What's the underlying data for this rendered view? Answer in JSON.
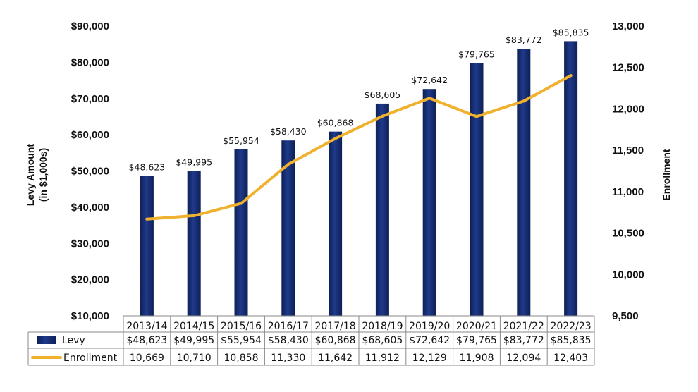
{
  "chart_data": {
    "type": "bar",
    "categories": [
      "2013/14",
      "2014/15",
      "2015/16",
      "2016/17",
      "2017/18",
      "2018/19",
      "2019/20",
      "2020/21",
      "2021/22",
      "2022/23"
    ],
    "series": [
      {
        "name": "Levy",
        "type": "bar",
        "axis": "left",
        "values": [
          48623,
          49995,
          55954,
          58430,
          60868,
          68605,
          72642,
          79765,
          83772,
          85835
        ],
        "labels": [
          "$48,623",
          "$49,995",
          "$55,954",
          "$58,430",
          "$60,868",
          "$68,605",
          "$72,642",
          "$79,765",
          "$83,772",
          "$85,835"
        ]
      },
      {
        "name": "Enrollment",
        "type": "line",
        "axis": "right",
        "values": [
          10669,
          10710,
          10858,
          11330,
          11642,
          11912,
          12129,
          11908,
          12094,
          12403
        ],
        "labels": [
          "10,669",
          "10,710",
          "10,858",
          "11,330",
          "11,642",
          "11,912",
          "12,129",
          "11,908",
          "12,094",
          "12,403"
        ]
      }
    ],
    "ylabel": "Levy Amount",
    "ylabel_sub": "(in $1,000s)",
    "y2label": "Enrollment",
    "ylim": [
      10000,
      90000
    ],
    "y2lim": [
      9500,
      13000
    ],
    "yticks": [
      "$10,000",
      "$20,000",
      "$30,000",
      "$40,000",
      "$50,000",
      "$60,000",
      "$70,000",
      "$80,000",
      "$90,000"
    ],
    "y2ticks": [
      "9,500",
      "10,000",
      "10,500",
      "11,000",
      "11,500",
      "12,000",
      "12,500",
      "13,000"
    ],
    "grid": false,
    "legend": "data-table",
    "colors": {
      "bar": "#1f3a8a",
      "bar_dark": "#0d1f55",
      "line": "#f0b22e"
    }
  }
}
